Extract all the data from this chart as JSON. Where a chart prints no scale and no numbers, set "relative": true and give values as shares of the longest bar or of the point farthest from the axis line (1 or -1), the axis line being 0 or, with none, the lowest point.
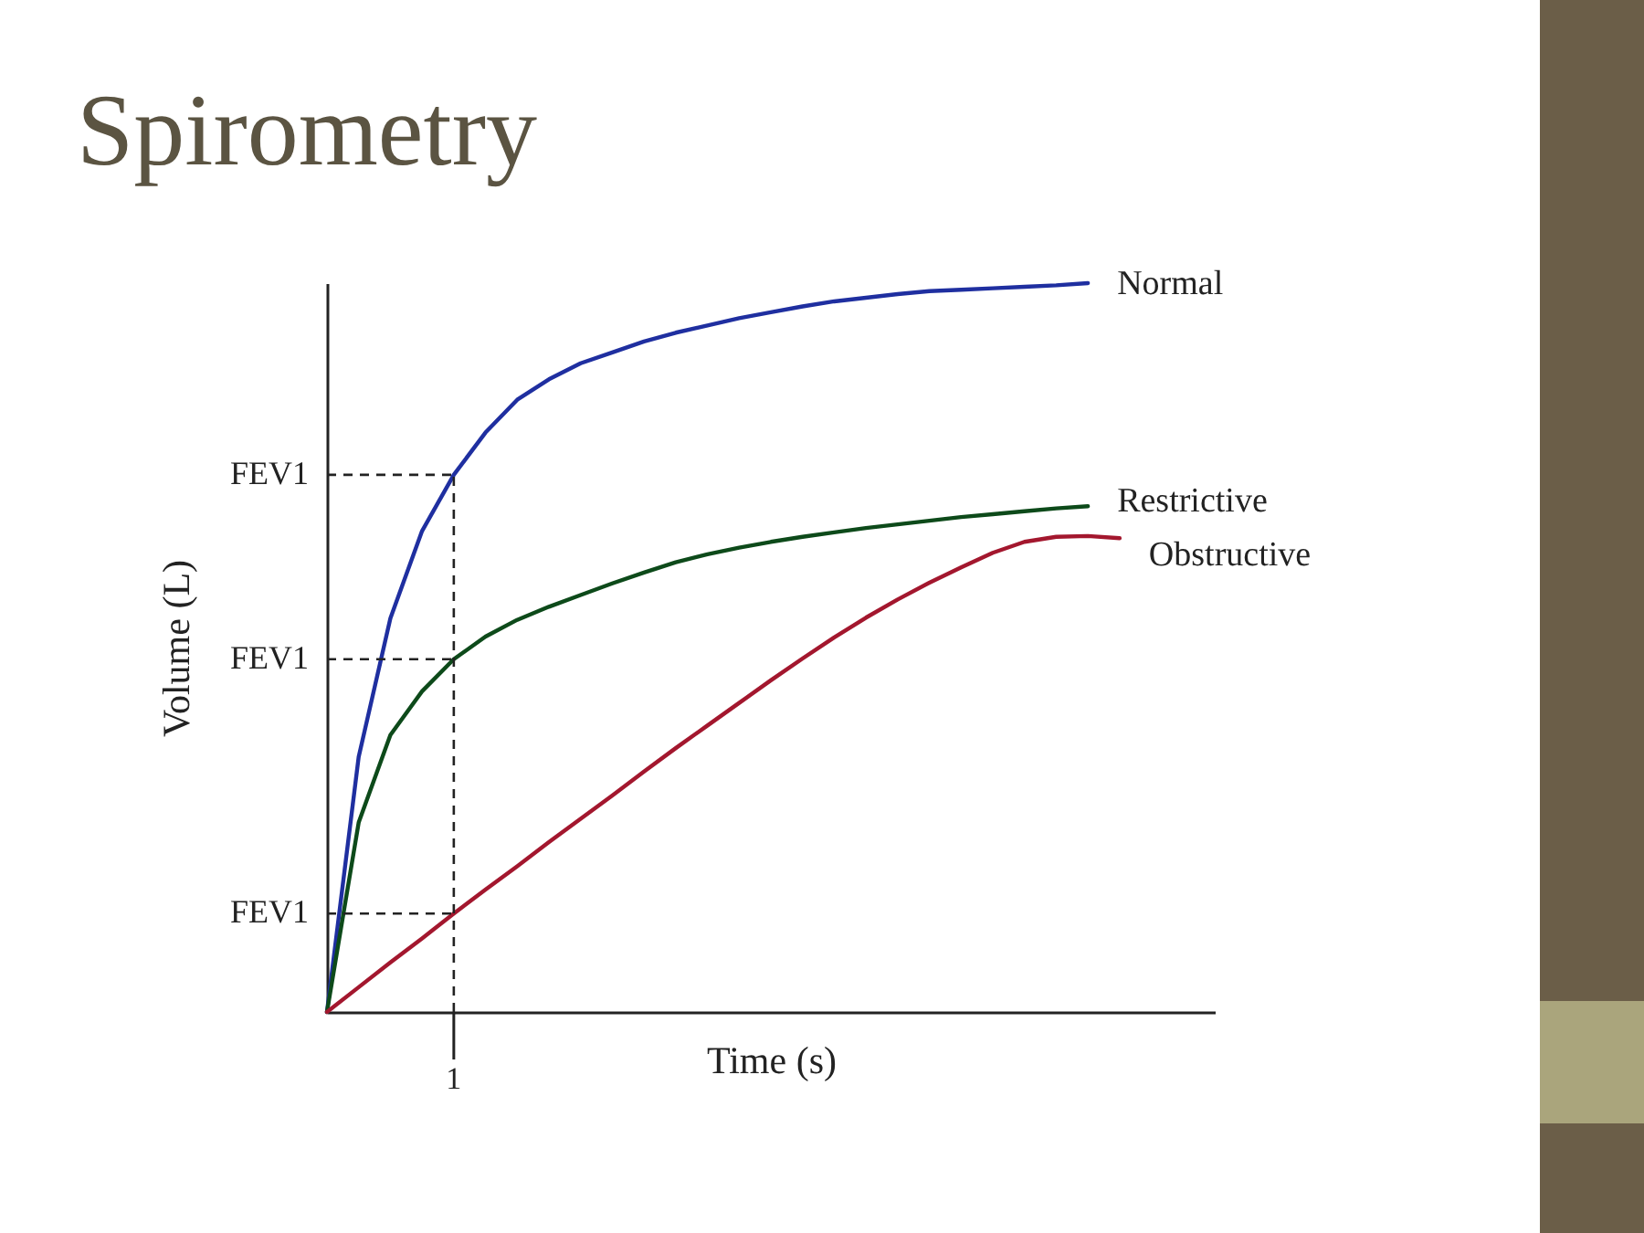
{
  "chart_data": {
    "type": "line",
    "title": "Spirometry",
    "xlabel": "Time (s)",
    "ylabel": "Volume (L)",
    "relative": true,
    "annotations": [
      "1"
    ],
    "categories": [
      null,
      null,
      null,
      null,
      null,
      null,
      null,
      null,
      null,
      null,
      null,
      null,
      null,
      null,
      null,
      null,
      null,
      null,
      null,
      null,
      null,
      null,
      null,
      null,
      null,
      null,
      null,
      null,
      null
    ],
    "series": [
      {
        "name": "Normal",
        "color": "#1f2fa0",
        "values": [
          0,
          0.35,
          0.54,
          0.66,
          0.737,
          0.795,
          0.84,
          0.868,
          0.89,
          0.905,
          0.92,
          0.932,
          0.942,
          0.952,
          0.96,
          0.968,
          0.975,
          0.98,
          0.985,
          0.989,
          0.991,
          0.993,
          0.995,
          0.997,
          1,
          null,
          null,
          null,
          null
        ]
      },
      {
        "name": "Restrictive",
        "color": "#0d4a1a",
        "values": [
          0,
          0.26,
          0.38,
          0.44,
          0.484,
          0.515,
          0.538,
          0.556,
          0.572,
          0.588,
          0.603,
          0.617,
          0.628,
          0.637,
          0.645,
          0.652,
          0.658,
          0.664,
          0.669,
          0.674,
          0.679,
          0.683,
          0.687,
          0.691,
          0.694,
          null,
          null,
          null,
          null
        ]
      },
      {
        "name": "Obstructive",
        "color": "#a3172e",
        "values": [
          0,
          0.034,
          0.068,
          0.101,
          0.135,
          0.168,
          0.2,
          0.233,
          0.265,
          0.297,
          0.33,
          0.362,
          0.393,
          0.424,
          0.455,
          0.485,
          0.514,
          0.541,
          0.566,
          0.589,
          0.61,
          0.63,
          0.645,
          0.652,
          0.653,
          0.65,
          null,
          null,
          null
        ]
      }
    ],
    "ref_lines": [
      {
        "axis": "y",
        "value": 0.737,
        "label": "FEV1",
        "line_style": "dashed"
      },
      {
        "axis": "y",
        "value": 0.484,
        "label": "FEV1",
        "line_style": "dashed"
      },
      {
        "axis": "y",
        "value": 0.135,
        "label": "FEV1",
        "line_style": "dashed"
      }
    ]
  }
}
